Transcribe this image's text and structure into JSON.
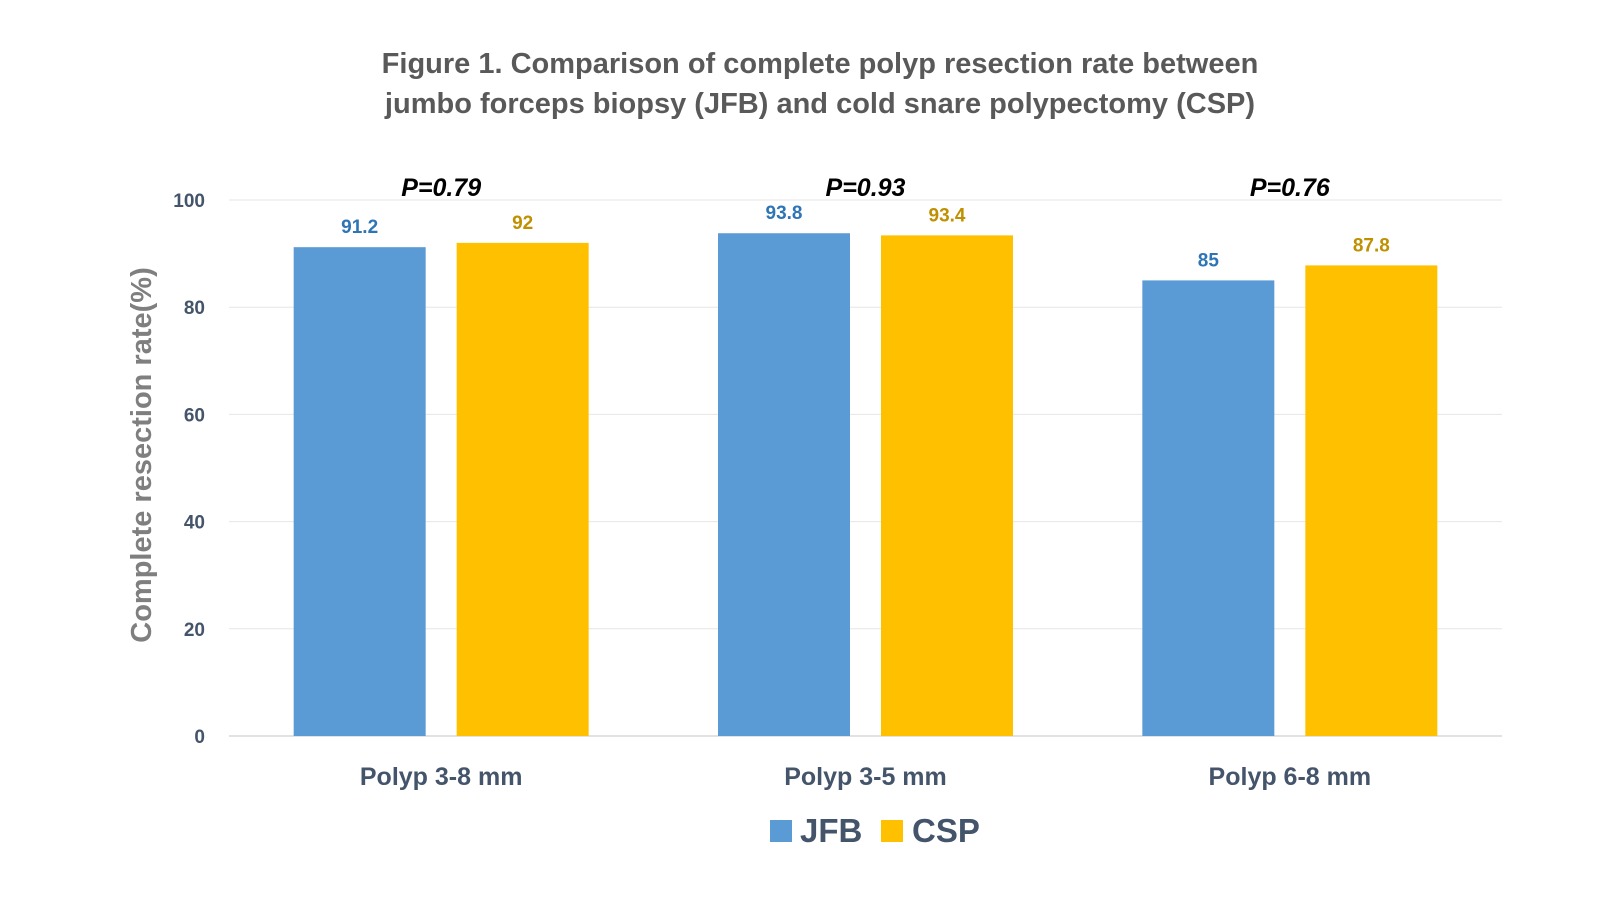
{
  "chart_data": {
    "type": "bar",
    "title": [
      "Figure 1. Comparison of complete polyp resection rate between",
      "jumbo forceps biopsy (JFB) and cold snare polypectomy (CSP)"
    ],
    "xlabel": "",
    "ylabel": "Complete resection rate(%)",
    "ylim": [
      0,
      100
    ],
    "yticks": [
      "0",
      "20",
      "40",
      "60",
      "80",
      "100"
    ],
    "grid": true,
    "legend_position": "bottom",
    "categories": [
      "Polyp 3-8 mm",
      "Polyp 3-5 mm",
      "Polyp 6-8 mm"
    ],
    "series": [
      {
        "name": "JFB",
        "values": [
          91.2,
          93.8,
          85
        ],
        "labels": [
          "91.2",
          "93.8",
          "85"
        ],
        "color": "#5b9bd5",
        "label_color": "#2e75b6"
      },
      {
        "name": "CSP",
        "values": [
          92,
          93.4,
          87.8
        ],
        "labels": [
          "92",
          "93.4",
          "87.8"
        ],
        "color": "#ffc000",
        "label_color": "#bf9000"
      }
    ],
    "annotations": [
      "P=0.79",
      "P=0.93",
      "P=0.76"
    ]
  }
}
